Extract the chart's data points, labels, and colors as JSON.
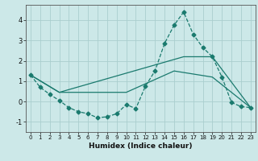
{
  "xlabel": "Humidex (Indice chaleur)",
  "bg_color": "#cce8e8",
  "line_color": "#1a7a6e",
  "grid_color": "#aacece",
  "xlim": [
    -0.5,
    23.5
  ],
  "ylim": [
    -1.5,
    4.75
  ],
  "xticks": [
    0,
    1,
    2,
    3,
    4,
    5,
    6,
    7,
    8,
    9,
    10,
    11,
    12,
    13,
    14,
    15,
    16,
    17,
    18,
    19,
    20,
    21,
    22,
    23
  ],
  "yticks": [
    -1,
    0,
    1,
    2,
    3,
    4
  ],
  "series1_x": [
    0,
    1,
    2,
    3,
    4,
    5,
    6,
    7,
    8,
    9,
    10,
    11,
    12,
    13,
    14,
    15,
    16,
    17,
    18,
    19,
    20,
    21,
    22,
    23
  ],
  "series1_y": [
    1.3,
    0.7,
    0.35,
    0.05,
    -0.3,
    -0.5,
    -0.6,
    -0.8,
    -0.75,
    -0.6,
    -0.15,
    -0.35,
    0.75,
    1.5,
    2.85,
    3.75,
    4.4,
    3.3,
    2.65,
    2.2,
    1.2,
    -0.05,
    -0.25,
    -0.3
  ],
  "series2_x": [
    0,
    3,
    16,
    19,
    23
  ],
  "series2_y": [
    1.3,
    0.45,
    2.2,
    2.2,
    -0.3
  ],
  "series3_x": [
    0,
    3,
    10,
    15,
    19,
    23
  ],
  "series3_y": [
    1.3,
    0.45,
    0.45,
    1.5,
    1.2,
    -0.3
  ]
}
